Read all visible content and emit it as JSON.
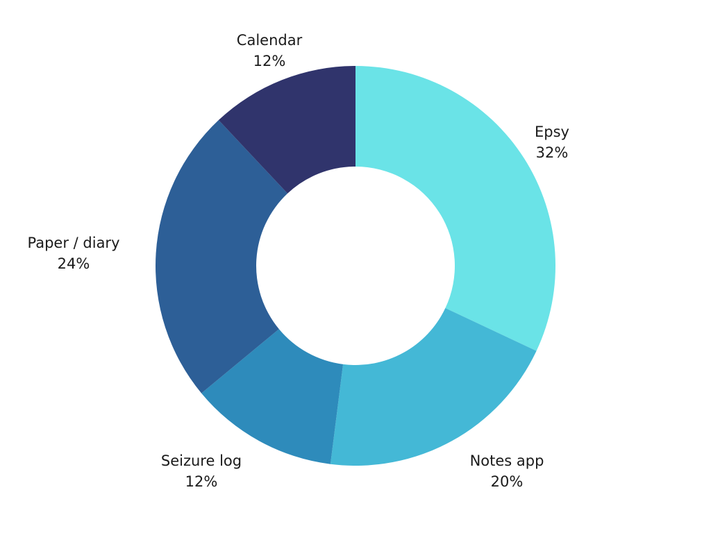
{
  "chart_data": {
    "type": "pie",
    "style": "donut",
    "start_angle_deg": 0,
    "direction": "clockwise",
    "slices": [
      {
        "label": "Epsy",
        "value": 32,
        "display": "32%",
        "color": "#6ae3e7"
      },
      {
        "label": "Notes app",
        "value": 20,
        "display": "20%",
        "color": "#44b8d6"
      },
      {
        "label": "Seizure log",
        "value": 12,
        "display": "12%",
        "color": "#2e8bbb"
      },
      {
        "label": "Paper / diary",
        "value": 24,
        "display": "24%",
        "color": "#2d5f97"
      },
      {
        "label": "Calendar",
        "value": 12,
        "display": "12%",
        "color": "#30346c"
      }
    ]
  }
}
